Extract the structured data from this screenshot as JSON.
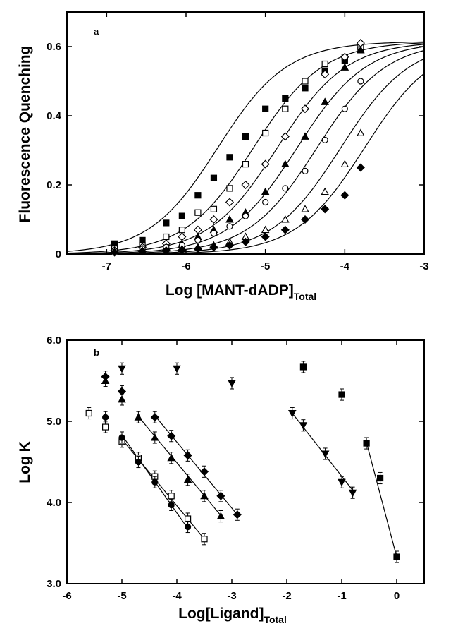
{
  "chart_data": [
    {
      "type": "scatter",
      "panel_label": "a",
      "xlabel": "Log  [MANT-dADP]",
      "xlabel_sub": "Total",
      "ylabel": "Fluorescence  Quenching",
      "xlim": [
        -7.5,
        -3
      ],
      "ylim": [
        0,
        0.7
      ],
      "xticks": [
        -7,
        -6,
        -5,
        -4,
        -3
      ],
      "yticks": [
        0,
        0.2,
        0.4,
        0.6
      ],
      "ytick_labels": [
        "0",
        "0.2",
        "0.4",
        "0.6"
      ],
      "grid": false,
      "curve_max": 0.615,
      "curve_slope": 1,
      "series": [
        {
          "marker": "square",
          "fill": true,
          "midpoint": -5.6,
          "x": [
            -6.9,
            -6.55,
            -6.25,
            -6.05,
            -5.85,
            -5.65,
            -5.45,
            -5.25,
            -5.0,
            -4.75,
            -4.5,
            -4.25,
            -4.0,
            -3.8
          ],
          "y": [
            0.03,
            0.04,
            0.09,
            0.11,
            0.17,
            0.22,
            0.28,
            0.34,
            0.42,
            0.45,
            0.48,
            0.53,
            0.56,
            0.59
          ]
        },
        {
          "marker": "square",
          "fill": false,
          "midpoint": -5.15,
          "x": [
            -6.9,
            -6.55,
            -6.25,
            -6.05,
            -5.85,
            -5.65,
            -5.45,
            -5.25,
            -5.0,
            -4.75,
            -4.5,
            -4.25,
            -4.0,
            -3.8
          ],
          "y": [
            0.015,
            0.025,
            0.05,
            0.07,
            0.12,
            0.13,
            0.19,
            0.26,
            0.35,
            0.42,
            0.5,
            0.55,
            0.57,
            0.6
          ]
        },
        {
          "marker": "diamond",
          "fill": false,
          "midpoint": -4.85,
          "x": [
            -6.9,
            -6.55,
            -6.25,
            -6.05,
            -5.85,
            -5.65,
            -5.45,
            -5.25,
            -5.0,
            -4.75,
            -4.5,
            -4.25,
            -4.0,
            -3.8
          ],
          "y": [
            0.01,
            0.02,
            0.03,
            0.05,
            0.07,
            0.1,
            0.15,
            0.2,
            0.26,
            0.34,
            0.42,
            0.52,
            0.57,
            0.61
          ]
        },
        {
          "marker": "triangle",
          "fill": true,
          "midpoint": -4.6,
          "x": [
            -6.9,
            -6.55,
            -6.25,
            -6.05,
            -5.85,
            -5.65,
            -5.45,
            -5.25,
            -5.0,
            -4.75,
            -4.5,
            -4.25,
            -4.0,
            -3.8
          ],
          "y": [
            0.01,
            0.015,
            0.02,
            0.03,
            0.05,
            0.07,
            0.1,
            0.12,
            0.18,
            0.26,
            0.34,
            0.44,
            0.54,
            0.59
          ]
        },
        {
          "marker": "circle",
          "fill": false,
          "midpoint": -4.35,
          "x": [
            -6.9,
            -6.55,
            -6.25,
            -6.05,
            -5.85,
            -5.65,
            -5.45,
            -5.25,
            -5.0,
            -4.75,
            -4.5,
            -4.25,
            -4.0,
            -3.8
          ],
          "y": [
            0.01,
            0.015,
            0.02,
            0.025,
            0.04,
            0.06,
            0.08,
            0.11,
            0.15,
            0.19,
            0.24,
            0.33,
            0.42,
            0.5
          ]
        },
        {
          "marker": "triangle",
          "fill": false,
          "midpoint": -4.05,
          "x": [
            -6.9,
            -6.55,
            -6.25,
            -6.05,
            -5.85,
            -5.65,
            -5.45,
            -5.25,
            -5.0,
            -4.75,
            -4.5,
            -4.25,
            -4.0,
            -3.8
          ],
          "y": [
            0.005,
            0.01,
            0.01,
            0.015,
            0.02,
            0.025,
            0.035,
            0.05,
            0.07,
            0.1,
            0.13,
            0.18,
            0.26,
            0.35
          ]
        },
        {
          "marker": "diamond",
          "fill": true,
          "midpoint": -3.75,
          "x": [
            -6.9,
            -6.55,
            -6.25,
            -6.05,
            -5.85,
            -5.65,
            -5.45,
            -5.25,
            -5.0,
            -4.75,
            -4.5,
            -4.25,
            -4.0,
            -3.8
          ],
          "y": [
            0.005,
            0.008,
            0.01,
            0.012,
            0.015,
            0.02,
            0.025,
            0.035,
            0.05,
            0.07,
            0.1,
            0.13,
            0.17,
            0.25
          ]
        }
      ]
    },
    {
      "type": "scatter",
      "panel_label": "b",
      "xlabel": "Log[Ligand]",
      "xlabel_sub": "Total",
      "ylabel": "Log K",
      "xlim": [
        -6,
        0.5
      ],
      "ylim": [
        3.0,
        6.0
      ],
      "xticks": [
        -6,
        -5,
        -4,
        -3,
        -2,
        -1,
        0
      ],
      "yticks": [
        3.0,
        4.0,
        5.0,
        6.0
      ],
      "ytick_labels": [
        "3.0",
        "4.0",
        "5.0",
        "6.0"
      ],
      "grid": false,
      "error_bar": 0.07,
      "series": [
        {
          "marker": "square",
          "fill": false,
          "x": [
            -5.6,
            -5.3,
            -5.0,
            -4.7,
            -4.4,
            -4.1,
            -3.8,
            -3.5
          ],
          "y": [
            5.1,
            4.93,
            4.75,
            4.55,
            4.32,
            4.08,
            3.8,
            3.55
          ],
          "fit": [
            [
              -5.0,
              4.78
            ],
            [
              -3.5,
              3.55
            ]
          ]
        },
        {
          "marker": "circle",
          "fill": true,
          "x": [
            -5.3,
            -5.0,
            -4.7,
            -4.4,
            -4.1,
            -3.8
          ],
          "y": [
            5.05,
            4.8,
            4.5,
            4.25,
            3.97,
            3.7
          ],
          "fit": [
            [
              -5.0,
              4.83
            ],
            [
              -3.8,
              3.68
            ]
          ]
        },
        {
          "marker": "triangle",
          "fill": true,
          "x": [
            -5.3,
            -5.0,
            -4.7,
            -4.4,
            -4.1,
            -3.8,
            -3.5,
            -3.2
          ],
          "y": [
            5.5,
            5.27,
            5.05,
            4.8,
            4.55,
            4.28,
            4.08,
            3.83
          ],
          "fit": [
            [
              -4.7,
              5.06
            ],
            [
              -3.2,
              3.84
            ]
          ]
        },
        {
          "marker": "diamond",
          "fill": true,
          "x": [
            -5.3,
            -5.0,
            -4.4,
            -4.1,
            -3.8,
            -3.5,
            -3.2,
            -2.9
          ],
          "y": [
            5.55,
            5.37,
            5.05,
            4.82,
            4.58,
            4.38,
            4.08,
            3.85
          ],
          "fit": [
            [
              -4.4,
              5.07
            ],
            [
              -2.9,
              3.85
            ]
          ]
        },
        {
          "marker": "triangle-down",
          "fill": true,
          "x": [
            -5.0,
            -4.0,
            -3.0,
            -1.9,
            -1.7,
            -1.3,
            -1.0,
            -0.8
          ],
          "y": [
            5.65,
            5.65,
            5.47,
            5.1,
            4.95,
            4.6,
            4.25,
            4.12
          ],
          "fit": [
            [
              -1.9,
              5.1
            ],
            [
              -0.8,
              4.15
            ]
          ]
        },
        {
          "marker": "square",
          "fill": true,
          "x": [
            -1.7,
            -1.0,
            -0.55,
            -0.3,
            0.0
          ],
          "y": [
            5.67,
            5.33,
            4.73,
            4.3,
            3.33
          ],
          "fit": [
            [
              -0.55,
              4.74
            ],
            [
              0.0,
              3.33
            ]
          ]
        }
      ]
    }
  ]
}
